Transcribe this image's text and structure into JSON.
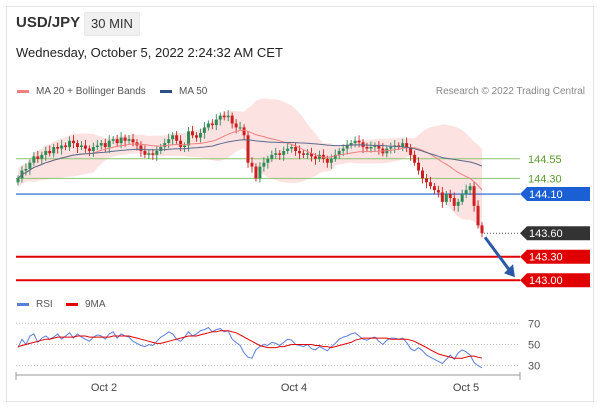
{
  "header": {
    "symbol": "USD/JPY",
    "timeframe": "30 MIN",
    "timestamp": "Wednesday, October 5, 2022 2:24:32 AM CET",
    "credit": "Research © 2022 Trading Central"
  },
  "legend_top": [
    {
      "label": "MA 20 + Bollinger Bands",
      "color": "#f08080"
    },
    {
      "label": "MA 50",
      "color": "#2b4f7e"
    }
  ],
  "legend_bottom": [
    {
      "label": "RSI",
      "color": "#5b7fdb"
    },
    {
      "label": "9MA",
      "color": "#e00000"
    }
  ],
  "colors": {
    "up_candle": "#2e8b57",
    "down_candle": "#cc1f1f",
    "bollinger_fill": "#fde2e2",
    "resistance": "#8dc26f",
    "support": "#e00000",
    "pivot": "#1a5fd4",
    "last_price": "#333333",
    "arrow": "#2a5aa6"
  },
  "chart_data": [
    {
      "type": "candlestick",
      "title": "USD/JPY 30 MIN",
      "x_ticks": [
        "Oct 2",
        "Oct 4",
        "Oct 5"
      ],
      "ylim": [
        142.85,
        145.3
      ],
      "levels": [
        {
          "label": "144.55",
          "value": 144.55,
          "kind": "resistance"
        },
        {
          "label": "144.30",
          "value": 144.3,
          "kind": "resistance"
        },
        {
          "label": "144.10",
          "value": 144.1,
          "kind": "pivot"
        },
        {
          "label": "143.60",
          "value": 143.6,
          "kind": "last"
        },
        {
          "label": "143.30",
          "value": 143.3,
          "kind": "support"
        },
        {
          "label": "143.00",
          "value": 143.0,
          "kind": "support"
        }
      ],
      "forecast_arrow": {
        "from": 143.6,
        "to": 143.0
      },
      "close": [
        144.3,
        144.4,
        144.42,
        144.5,
        144.58,
        144.55,
        144.6,
        144.65,
        144.62,
        144.7,
        144.68,
        144.72,
        144.7,
        144.78,
        144.75,
        144.7,
        144.72,
        144.68,
        144.65,
        144.7,
        144.72,
        144.75,
        144.7,
        144.78,
        144.8,
        144.75,
        144.82,
        144.78,
        144.8,
        144.76,
        144.72,
        144.65,
        144.6,
        144.62,
        144.6,
        144.65,
        144.7,
        144.75,
        144.8,
        144.85,
        144.78,
        144.7,
        144.72,
        144.9,
        144.85,
        144.82,
        144.88,
        144.95,
        145.0,
        144.98,
        145.05,
        145.1,
        145.08,
        145.1,
        145.0,
        144.95,
        144.95,
        144.85,
        144.5,
        144.45,
        144.3,
        144.45,
        144.5,
        144.55,
        144.6,
        144.62,
        144.6,
        144.65,
        144.68,
        144.7,
        144.65,
        144.62,
        144.6,
        144.62,
        144.58,
        144.55,
        144.6,
        144.55,
        144.5,
        144.55,
        144.6,
        144.65,
        144.68,
        144.72,
        144.75,
        144.78,
        144.76,
        144.7,
        144.68,
        144.7,
        144.72,
        144.68,
        144.62,
        144.68,
        144.7,
        144.72,
        144.7,
        144.75,
        144.7,
        144.6,
        144.5,
        144.4,
        144.3,
        144.25,
        144.2,
        144.15,
        144.12,
        144.0,
        144.1,
        144.05,
        143.95,
        144.0,
        144.1,
        144.15,
        144.2,
        143.95,
        143.7,
        143.6
      ],
      "rsi": {
        "ylim": [
          24,
          75
        ],
        "ticks": [
          70,
          50,
          30
        ],
        "rsi": [
          47,
          55,
          50,
          58,
          60,
          52,
          56,
          58,
          55,
          57,
          60,
          55,
          58,
          61,
          56,
          60,
          57,
          55,
          53,
          57,
          59,
          58,
          55,
          60,
          62,
          56,
          60,
          58,
          57,
          53,
          51,
          49,
          48,
          50,
          49,
          53,
          57,
          59,
          62,
          60,
          55,
          53,
          57,
          62,
          58,
          60,
          63,
          64,
          66,
          62,
          64,
          65,
          62,
          63,
          55,
          52,
          49,
          42,
          38,
          37,
          45,
          48,
          50,
          49,
          52,
          51,
          49,
          52,
          55,
          54,
          50,
          49,
          48,
          50,
          46,
          45,
          48,
          46,
          44,
          48,
          51,
          55,
          57,
          58,
          60,
          61,
          58,
          55,
          54,
          56,
          57,
          53,
          50,
          54,
          56,
          56,
          55,
          56,
          52,
          46,
          44,
          47,
          44,
          40,
          38,
          36,
          34,
          32,
          36,
          40,
          36,
          42,
          45,
          43,
          40,
          33,
          30,
          28
        ],
        "ma9": [
          48,
          49,
          50,
          51,
          52,
          53,
          54,
          55,
          55,
          56,
          57,
          57,
          57,
          57,
          57,
          58,
          58,
          58,
          57,
          57,
          57,
          57,
          57,
          57,
          58,
          58,
          58,
          58,
          58,
          57,
          56,
          55,
          54,
          53,
          52,
          51,
          51,
          52,
          53,
          54,
          55,
          56,
          57,
          58,
          58,
          58,
          59,
          60,
          61,
          62,
          62,
          63,
          63,
          63,
          62,
          61,
          59,
          57,
          55,
          53,
          51,
          49,
          48,
          47,
          47,
          47,
          48,
          48,
          49,
          50,
          50,
          50,
          50,
          50,
          50,
          49,
          49,
          48,
          48,
          47,
          48,
          49,
          50,
          51,
          52,
          54,
          55,
          56,
          56,
          56,
          56,
          56,
          56,
          56,
          55,
          55,
          55,
          55,
          55,
          54,
          53,
          51,
          49,
          47,
          45,
          43,
          41,
          40,
          39,
          38,
          37,
          37,
          37,
          38,
          39,
          39,
          38,
          37
        ]
      }
    }
  ]
}
